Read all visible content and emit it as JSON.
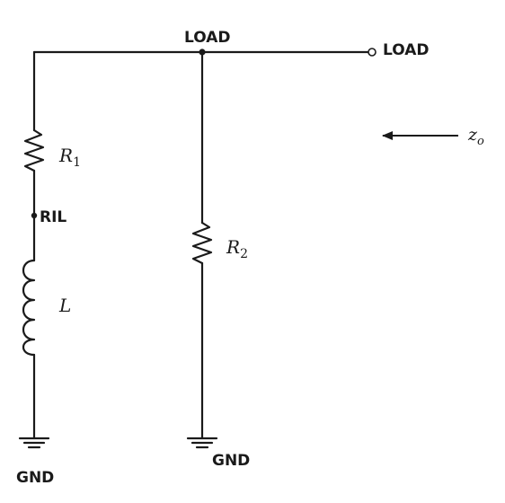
{
  "labels": {
    "load_top": "LOAD",
    "load_terminal": "LOAD",
    "ril": "RIL",
    "gnd_left": "GND",
    "gnd_right": "GND"
  },
  "components": {
    "r1": {
      "symbol": "R",
      "subscript": "1"
    },
    "r2": {
      "symbol": "R",
      "subscript": "2"
    },
    "inductor": {
      "symbol": "L"
    }
  },
  "impedance": {
    "symbol": "z",
    "subscript": "o"
  },
  "colors": {
    "ink": "#1a1a1a",
    "background": "#ffffff"
  }
}
